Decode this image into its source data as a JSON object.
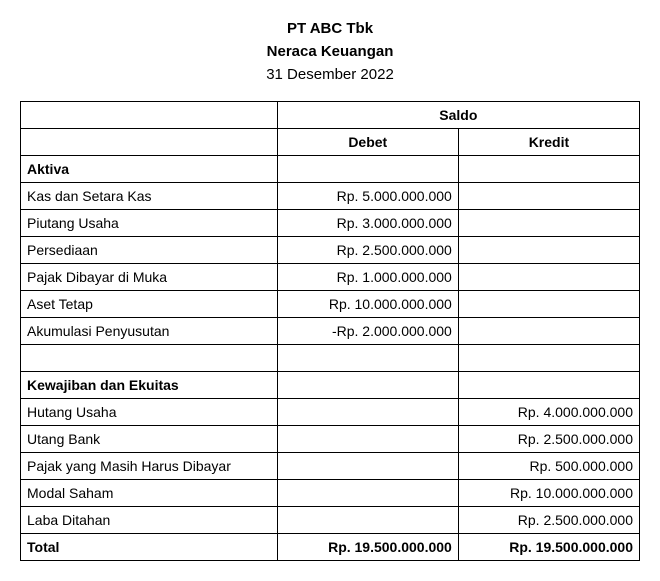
{
  "header": {
    "company": "PT ABC Tbk",
    "title": "Neraca Keuangan",
    "date": "31 Desember 2022"
  },
  "columns": {
    "saldo": "Saldo",
    "debet": "Debet",
    "kredit": "Kredit"
  },
  "sections": {
    "aktiva": "Aktiva",
    "kewajiban": "Kewajiban dan Ekuitas"
  },
  "rows": {
    "aktiva": [
      {
        "account": "Kas dan Setara Kas",
        "debet": "Rp. 5.000.000.000",
        "kredit": ""
      },
      {
        "account": "Piutang Usaha",
        "debet": "Rp. 3.000.000.000",
        "kredit": ""
      },
      {
        "account": "Persediaan",
        "debet": "Rp. 2.500.000.000",
        "kredit": ""
      },
      {
        "account": "Pajak Dibayar di Muka",
        "debet": "Rp. 1.000.000.000",
        "kredit": ""
      },
      {
        "account": "Aset Tetap",
        "debet": "Rp. 10.000.000.000",
        "kredit": ""
      },
      {
        "account": "Akumulasi Penyusutan",
        "debet": "-Rp. 2.000.000.000",
        "kredit": ""
      }
    ],
    "kewajiban": [
      {
        "account": "Hutang Usaha",
        "debet": "",
        "kredit": "Rp. 4.000.000.000"
      },
      {
        "account": "Utang Bank",
        "debet": "",
        "kredit": "Rp. 2.500.000.000"
      },
      {
        "account": "Pajak yang Masih Harus Dibayar",
        "debet": "",
        "kredit": "Rp. 500.000.000"
      },
      {
        "account": "Modal Saham",
        "debet": "",
        "kredit": "Rp. 10.000.000.000"
      },
      {
        "account": "Laba Ditahan",
        "debet": "",
        "kredit": "Rp. 2.500.000.000"
      }
    ]
  },
  "total": {
    "label": "Total",
    "debet": "Rp. 19.500.000.000",
    "kredit": "Rp. 19.500.000.000"
  }
}
